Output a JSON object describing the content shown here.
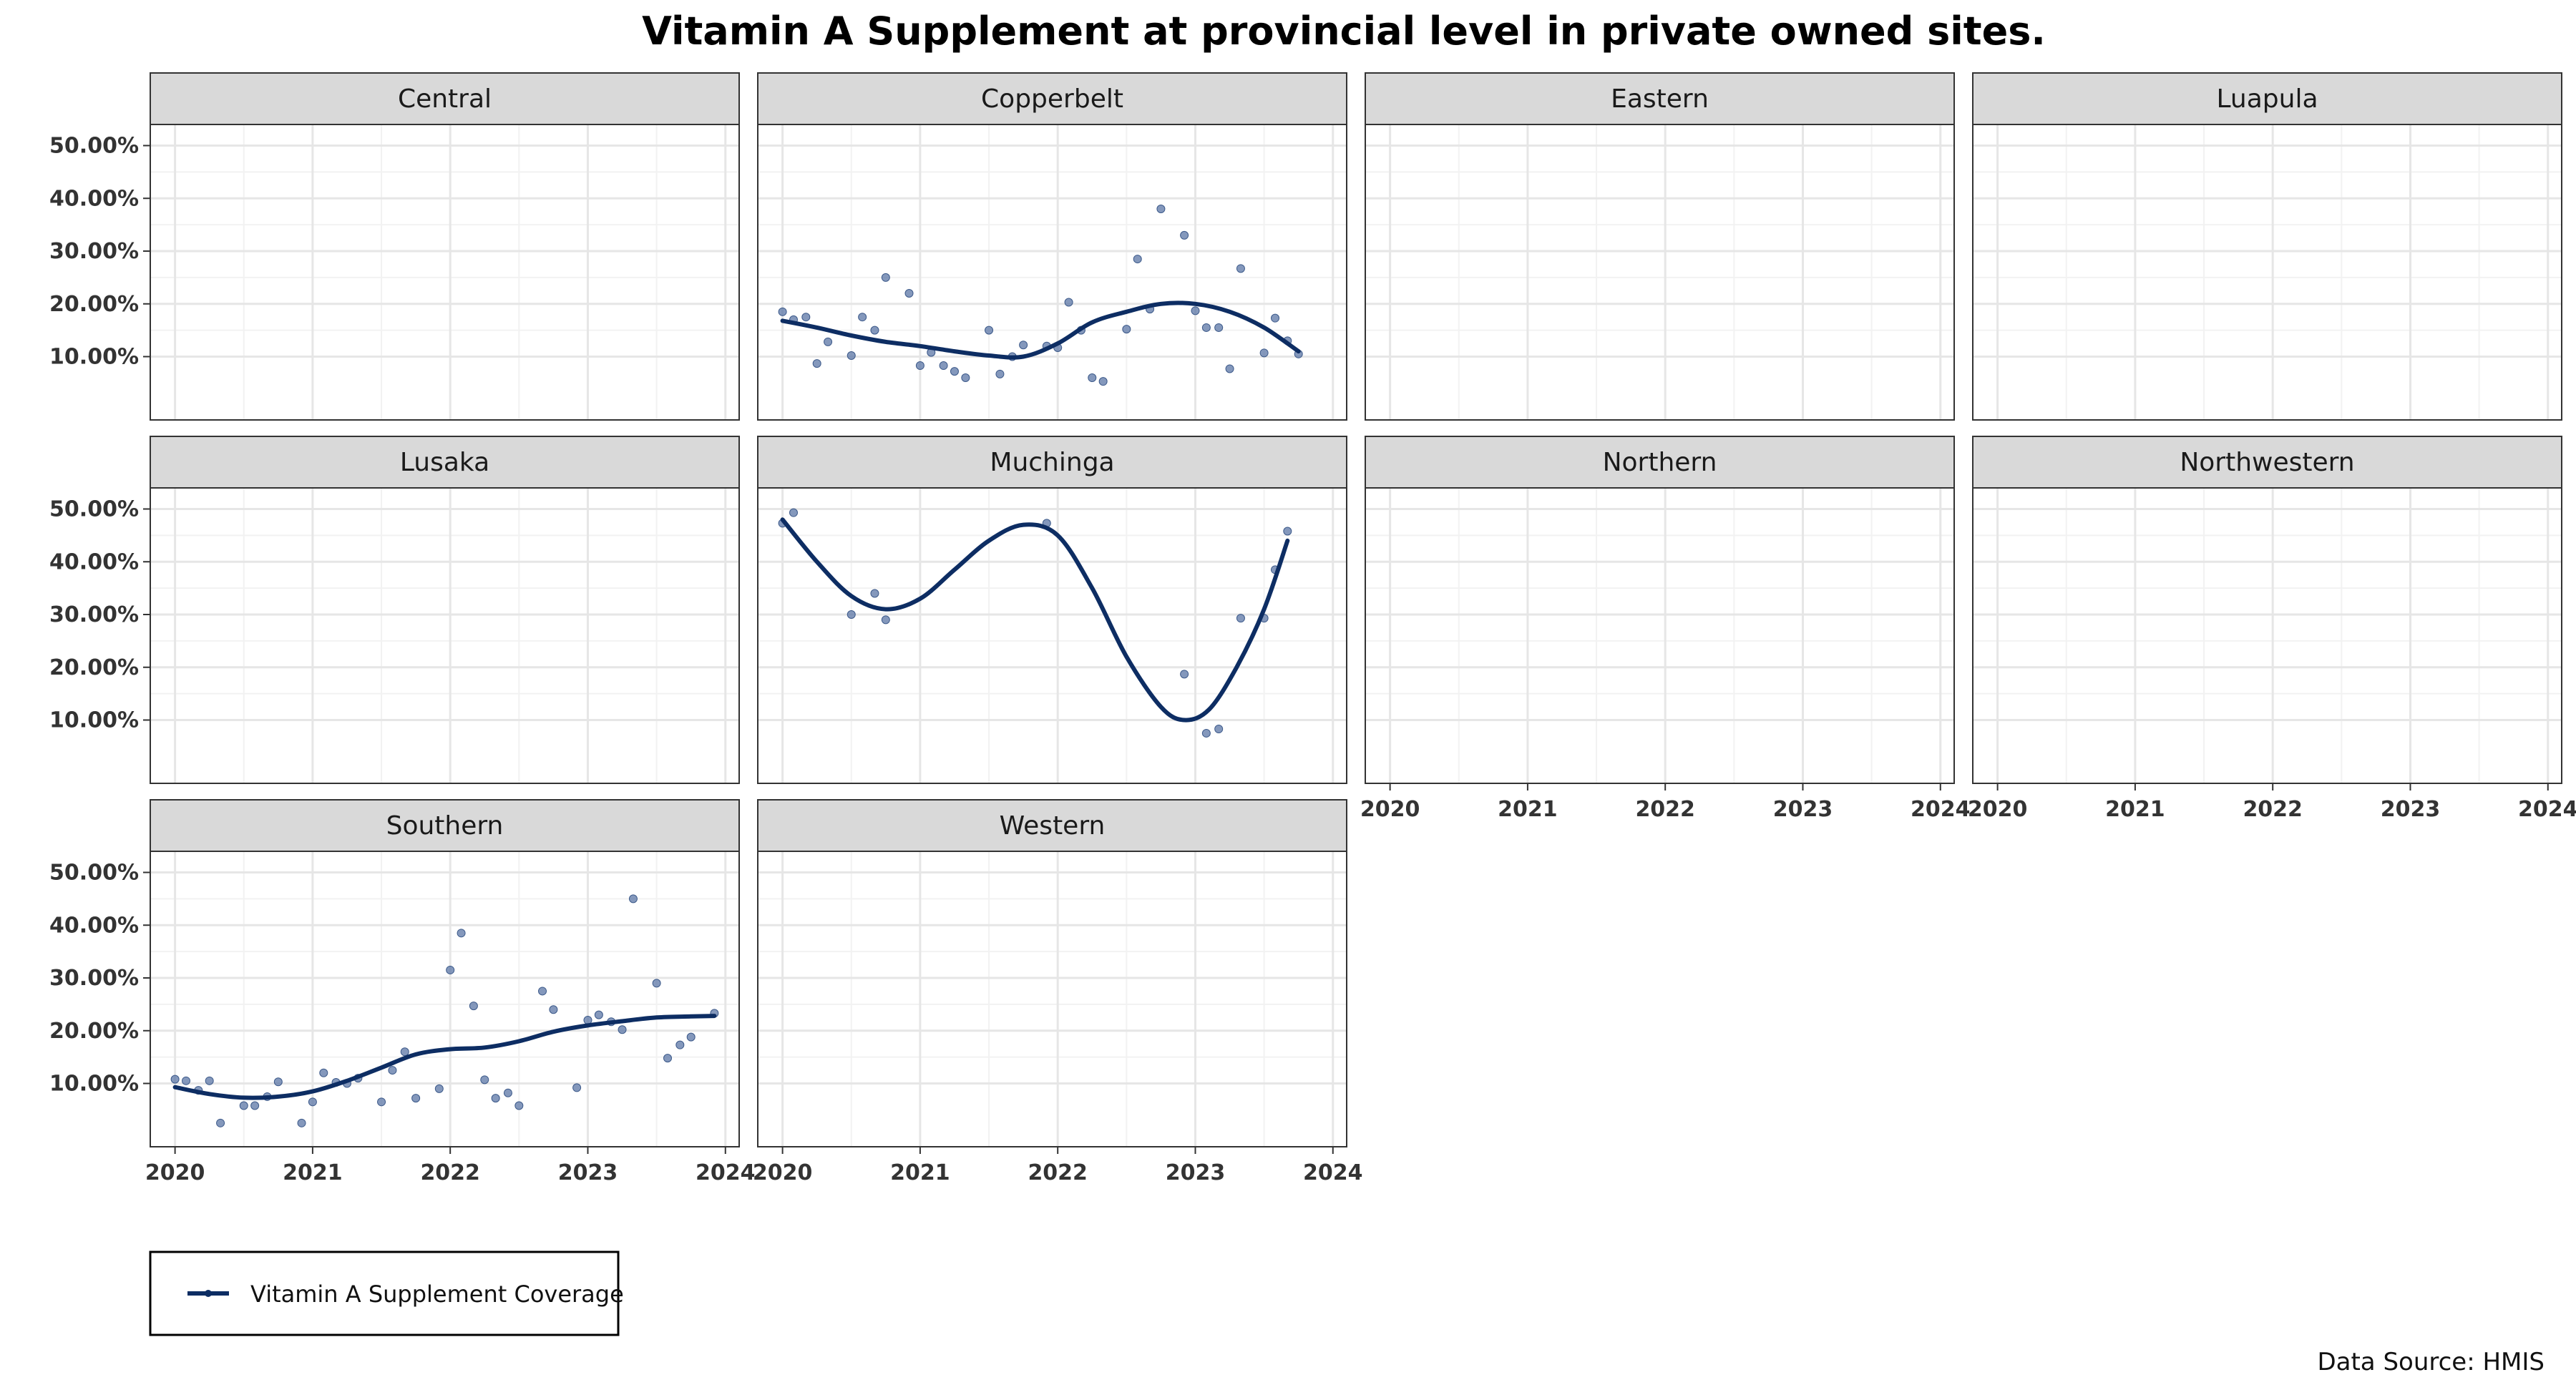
{
  "chart_data": {
    "type": "scatter",
    "title": "Vitamin A Supplement at provincial level in private owned sites.",
    "xlabel": "",
    "ylabel": "",
    "x_ticks": [
      2020,
      2021,
      2022,
      2023,
      2024
    ],
    "x_range": [
      2019.82,
      2024.1
    ],
    "y_ticks": [
      "10.00%",
      "20.00%",
      "30.00%",
      "40.00%",
      "50.00%"
    ],
    "y_tick_values": [
      10,
      20,
      30,
      40,
      50
    ],
    "y_range": [
      -2,
      54
    ],
    "grid": true,
    "legend_position": "bottom-left",
    "legend": {
      "label": "Vitamin A Supplement Coverage"
    },
    "source_note": "Data Source: HMIS",
    "colors": {
      "line": "#0d2d63",
      "points": "#5b76a6",
      "strip_fill": "#d9d9d9",
      "grid_major": "#e6e6e6",
      "grid_minor": "#f2f2f2"
    },
    "facets": [
      {
        "name": "Central",
        "points": [],
        "trend": []
      },
      {
        "name": "Copperbelt",
        "points": [
          [
            2020.0,
            18.5
          ],
          [
            2020.08,
            17.0
          ],
          [
            2020.17,
            17.5
          ],
          [
            2020.25,
            8.7
          ],
          [
            2020.33,
            12.8
          ],
          [
            2020.5,
            10.2
          ],
          [
            2020.58,
            17.5
          ],
          [
            2020.67,
            15.0
          ],
          [
            2020.75,
            25.0
          ],
          [
            2020.92,
            22.0
          ],
          [
            2021.0,
            8.3
          ],
          [
            2021.08,
            10.8
          ],
          [
            2021.17,
            8.3
          ],
          [
            2021.25,
            7.2
          ],
          [
            2021.33,
            6.0
          ],
          [
            2021.5,
            15.0
          ],
          [
            2021.58,
            6.7
          ],
          [
            2021.67,
            10.0
          ],
          [
            2021.75,
            12.2
          ],
          [
            2021.92,
            12.0
          ],
          [
            2022.0,
            11.7
          ],
          [
            2022.08,
            20.3
          ],
          [
            2022.17,
            15.0
          ],
          [
            2022.25,
            6.0
          ],
          [
            2022.33,
            5.3
          ],
          [
            2022.5,
            15.2
          ],
          [
            2022.58,
            28.5
          ],
          [
            2022.67,
            19.0
          ],
          [
            2022.75,
            38.0
          ],
          [
            2022.92,
            33.0
          ],
          [
            2023.0,
            18.7
          ],
          [
            2023.08,
            15.5
          ],
          [
            2023.17,
            15.5
          ],
          [
            2023.25,
            7.7
          ],
          [
            2023.33,
            26.7
          ],
          [
            2023.5,
            10.7
          ],
          [
            2023.58,
            17.3
          ],
          [
            2023.67,
            13.0
          ],
          [
            2023.75,
            10.5
          ]
        ],
        "trend": [
          [
            2020.0,
            16.8
          ],
          [
            2020.25,
            15.5
          ],
          [
            2020.5,
            14.0
          ],
          [
            2020.75,
            12.8
          ],
          [
            2021.0,
            12.0
          ],
          [
            2021.25,
            11.0
          ],
          [
            2021.5,
            10.2
          ],
          [
            2021.75,
            10.0
          ],
          [
            2022.0,
            12.5
          ],
          [
            2022.25,
            16.5
          ],
          [
            2022.5,
            18.5
          ],
          [
            2022.75,
            20.0
          ],
          [
            2023.0,
            20.0
          ],
          [
            2023.25,
            18.5
          ],
          [
            2023.5,
            15.5
          ],
          [
            2023.75,
            11.0
          ]
        ]
      },
      {
        "name": "Eastern",
        "points": [],
        "trend": []
      },
      {
        "name": "Luapula",
        "points": [],
        "trend": []
      },
      {
        "name": "Lusaka",
        "points": [],
        "trend": []
      },
      {
        "name": "Muchinga",
        "points": [
          [
            2020.0,
            47.3
          ],
          [
            2020.08,
            49.3
          ],
          [
            2020.5,
            30.0
          ],
          [
            2020.67,
            34.0
          ],
          [
            2020.75,
            29.0
          ],
          [
            2021.92,
            47.3
          ],
          [
            2022.92,
            18.7
          ],
          [
            2023.08,
            7.5
          ],
          [
            2023.17,
            8.3
          ],
          [
            2023.33,
            29.3
          ],
          [
            2023.5,
            29.3
          ],
          [
            2023.58,
            38.5
          ],
          [
            2023.67,
            45.8
          ]
        ],
        "trend": [
          [
            2020.0,
            48.0
          ],
          [
            2020.25,
            40.0
          ],
          [
            2020.5,
            33.5
          ],
          [
            2020.75,
            31.0
          ],
          [
            2021.0,
            33.0
          ],
          [
            2021.25,
            38.5
          ],
          [
            2021.5,
            44.0
          ],
          [
            2021.75,
            47.0
          ],
          [
            2022.0,
            45.0
          ],
          [
            2022.25,
            35.0
          ],
          [
            2022.5,
            22.0
          ],
          [
            2022.75,
            12.5
          ],
          [
            2022.92,
            10.0
          ],
          [
            2023.1,
            12.0
          ],
          [
            2023.3,
            20.0
          ],
          [
            2023.5,
            31.0
          ],
          [
            2023.67,
            44.0
          ]
        ]
      },
      {
        "name": "Northern",
        "points": [],
        "trend": []
      },
      {
        "name": "Northwestern",
        "points": [],
        "trend": []
      },
      {
        "name": "Southern",
        "points": [
          [
            2020.0,
            10.8
          ],
          [
            2020.08,
            10.5
          ],
          [
            2020.17,
            8.7
          ],
          [
            2020.25,
            10.5
          ],
          [
            2020.33,
            2.5
          ],
          [
            2020.5,
            5.8
          ],
          [
            2020.58,
            5.8
          ],
          [
            2020.67,
            7.5
          ],
          [
            2020.75,
            10.3
          ],
          [
            2020.92,
            2.5
          ],
          [
            2021.0,
            6.5
          ],
          [
            2021.08,
            12.0
          ],
          [
            2021.17,
            10.2
          ],
          [
            2021.25,
            10.0
          ],
          [
            2021.33,
            11.0
          ],
          [
            2021.5,
            6.5
          ],
          [
            2021.58,
            12.5
          ],
          [
            2021.67,
            16.0
          ],
          [
            2021.75,
            7.2
          ],
          [
            2021.92,
            9.0
          ],
          [
            2022.0,
            31.5
          ],
          [
            2022.08,
            38.5
          ],
          [
            2022.17,
            24.7
          ],
          [
            2022.25,
            10.7
          ],
          [
            2022.33,
            7.2
          ],
          [
            2022.42,
            8.2
          ],
          [
            2022.5,
            5.8
          ],
          [
            2022.67,
            27.5
          ],
          [
            2022.75,
            24.0
          ],
          [
            2022.92,
            9.2
          ],
          [
            2023.0,
            22.0
          ],
          [
            2023.08,
            23.0
          ],
          [
            2023.17,
            21.7
          ],
          [
            2023.25,
            20.2
          ],
          [
            2023.33,
            45.0
          ],
          [
            2023.5,
            29.0
          ],
          [
            2023.58,
            14.8
          ],
          [
            2023.67,
            17.3
          ],
          [
            2023.75,
            18.8
          ],
          [
            2023.92,
            23.3
          ]
        ],
        "trend": [
          [
            2020.0,
            9.3
          ],
          [
            2020.25,
            8.0
          ],
          [
            2020.5,
            7.3
          ],
          [
            2020.75,
            7.5
          ],
          [
            2021.0,
            8.5
          ],
          [
            2021.25,
            10.5
          ],
          [
            2021.5,
            13.0
          ],
          [
            2021.75,
            15.5
          ],
          [
            2022.0,
            16.5
          ],
          [
            2022.25,
            16.8
          ],
          [
            2022.5,
            18.0
          ],
          [
            2022.75,
            19.8
          ],
          [
            2023.0,
            21.0
          ],
          [
            2023.25,
            21.8
          ],
          [
            2023.5,
            22.5
          ],
          [
            2023.75,
            22.7
          ],
          [
            2023.92,
            22.8
          ]
        ]
      },
      {
        "name": "Western",
        "points": [],
        "trend": []
      }
    ]
  }
}
